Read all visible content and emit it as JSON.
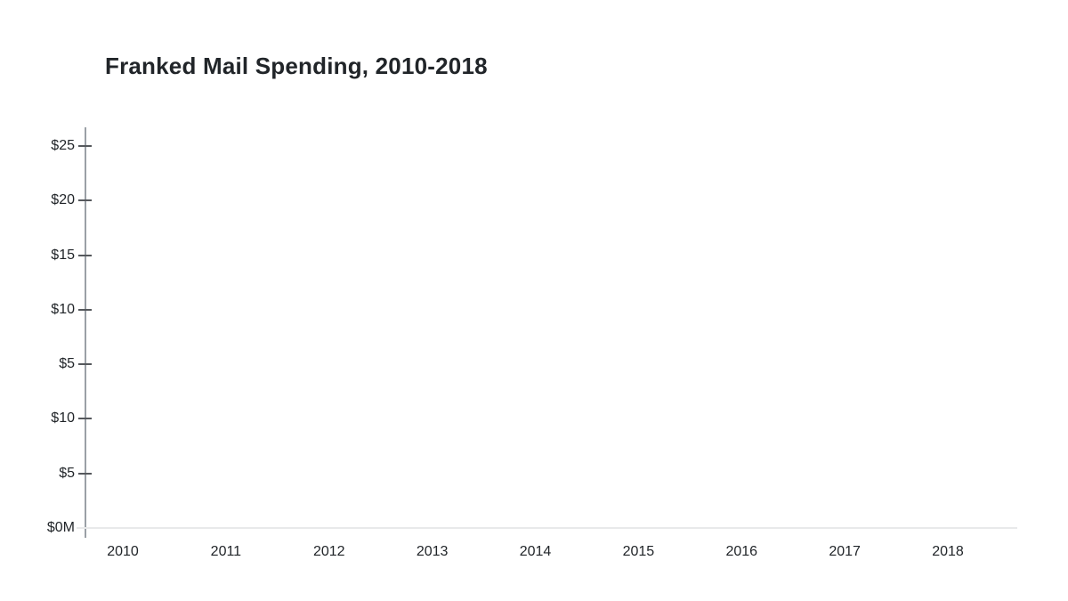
{
  "header": {
    "title": "Franked Mail Spending, 2010-2018"
  },
  "chart_data": {
    "type": "bar",
    "title": "Franked Mail Spending, 2010-2018",
    "categories": [
      "2010",
      "2011",
      "2012",
      "2013",
      "2014",
      "2015",
      "2016",
      "2017",
      "2018"
    ],
    "series": [],
    "plot_area_empty": true,
    "xlabel": "",
    "ylabel": "",
    "y_axis": {
      "tick_labels_top_to_bottom": [
        "$25",
        "$20",
        "$15",
        "$10",
        "$5",
        "$10",
        "$5",
        "$0M"
      ]
    },
    "legend": "none",
    "grid": "off"
  },
  "colors": {
    "background": "#ffffff",
    "title_text": "#212529",
    "axis_label_text": "#212529",
    "axis_line": "#9aa0a6",
    "tick_mark": "#55585c",
    "baseline": "#e8e9ea"
  }
}
